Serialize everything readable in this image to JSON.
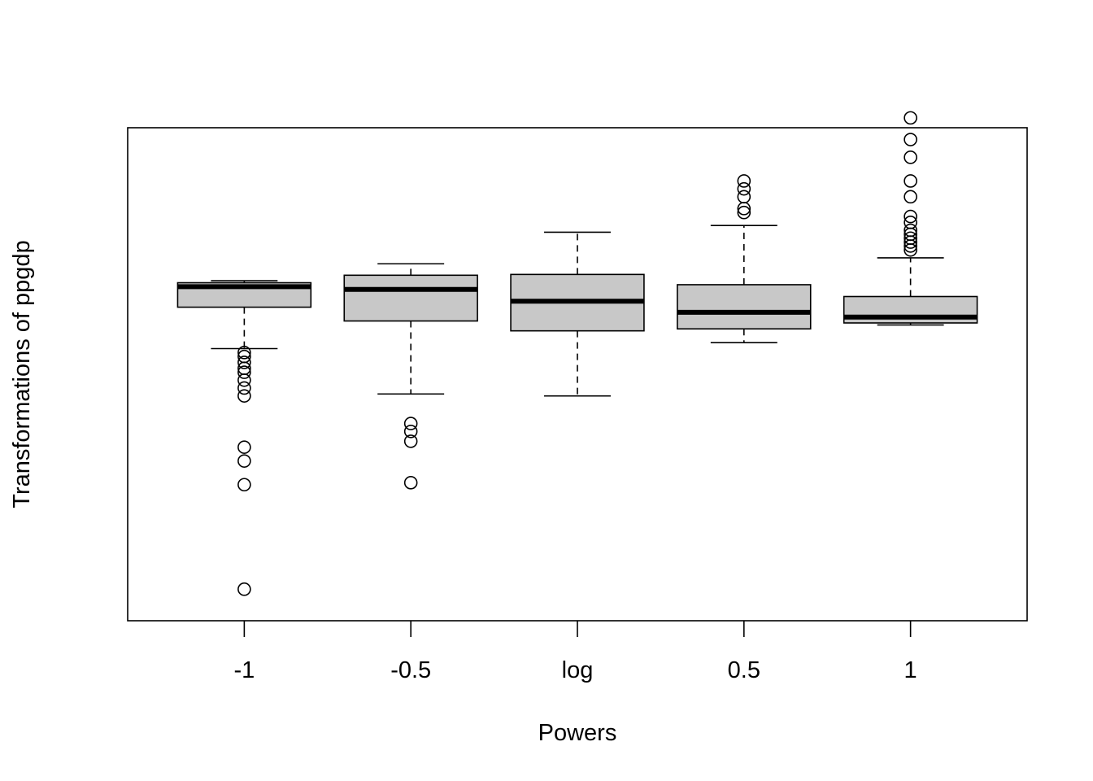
{
  "chart_data": {
    "type": "boxplot",
    "title": "",
    "xlabel": "Powers",
    "ylabel": "Transformations of ppgdp",
    "categories": [
      "-1",
      "-0.5",
      "log",
      "0.5",
      "1"
    ],
    "y_scale_note": "standardized transformed values; y axis has no tick labels",
    "ylim": [
      -7.9,
      4.6
    ],
    "grid": false,
    "legend": "none",
    "colors": {
      "box_fill": "#c8c8c8",
      "stroke": "#000000",
      "background": "#ffffff"
    },
    "boxes": [
      {
        "category": "-1",
        "whisker_low": -1.0,
        "q1": 0.05,
        "median": 0.57,
        "q3": 0.67,
        "whisker_high": 0.72,
        "outliers": [
          -1.1,
          -1.2,
          -1.35,
          -1.5,
          -1.6,
          -1.8,
          -2.0,
          -2.2,
          -3.5,
          -3.85,
          -4.45,
          -7.1
        ]
      },
      {
        "category": "-0.5",
        "whisker_low": -2.15,
        "q1": -0.3,
        "median": 0.5,
        "q3": 0.86,
        "whisker_high": 1.15,
        "outliers": [
          -2.9,
          -3.1,
          -3.35,
          -4.4
        ]
      },
      {
        "category": "log",
        "whisker_low": -2.2,
        "q1": -0.55,
        "median": 0.2,
        "q3": 0.88,
        "whisker_high": 1.95,
        "outliers": []
      },
      {
        "category": "0.5",
        "whisker_low": -0.85,
        "q1": -0.5,
        "median": -0.08,
        "q3": 0.62,
        "whisker_high": 2.12,
        "outliers": [
          2.45,
          2.55,
          2.85,
          3.05,
          3.25
        ]
      },
      {
        "category": "1",
        "whisker_low": -0.4,
        "q1": -0.35,
        "median": -0.2,
        "q3": 0.32,
        "whisker_high": 1.3,
        "outliers": [
          1.5,
          1.6,
          1.7,
          1.8,
          1.9,
          2.0,
          2.2,
          2.35,
          2.85,
          3.25,
          3.85,
          4.3,
          4.85
        ]
      }
    ]
  }
}
